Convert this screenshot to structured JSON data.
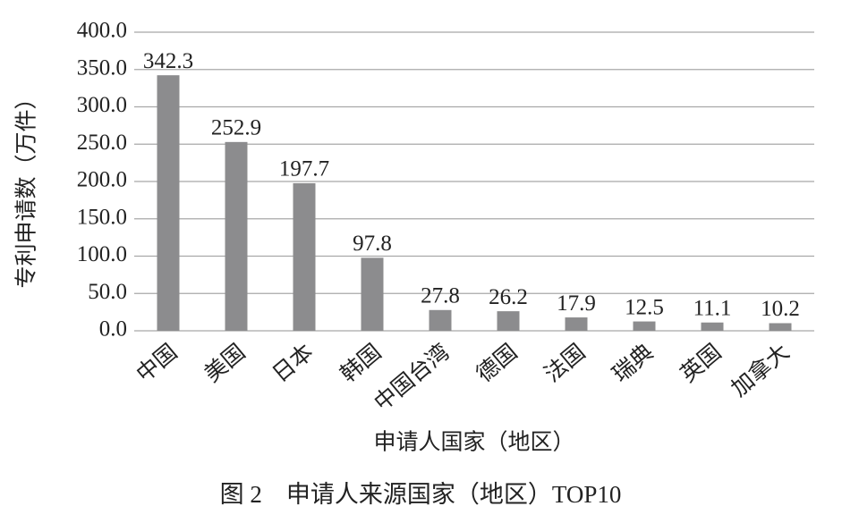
{
  "chart_data": {
    "type": "bar",
    "categories": [
      "中国",
      "美国",
      "日本",
      "韩国",
      "中国台湾",
      "德国",
      "法国",
      "瑞典",
      "英国",
      "加拿大"
    ],
    "values": [
      342.3,
      252.9,
      197.7,
      97.8,
      27.8,
      26.2,
      17.9,
      12.5,
      11.1,
      10.2
    ],
    "color": "#8c8c8e",
    "ylabel": "专利申请数（万件）",
    "xlabel": "申请人国家（地区）",
    "caption": "图 2　申请人来源国家（地区）TOP10",
    "ylim": [
      0,
      400
    ],
    "yticks": [
      {
        "value": 0,
        "label": "0.0"
      },
      {
        "value": 50,
        "label": "50.0"
      },
      {
        "value": 100,
        "label": "100.0"
      },
      {
        "value": 150,
        "label": "150.0"
      },
      {
        "value": 200,
        "label": "200.0"
      },
      {
        "value": 250,
        "label": "250.0"
      },
      {
        "value": 300,
        "label": "300.0"
      },
      {
        "value": 350,
        "label": "350.0"
      },
      {
        "value": 400,
        "label": "400.0"
      }
    ],
    "grid": true
  }
}
